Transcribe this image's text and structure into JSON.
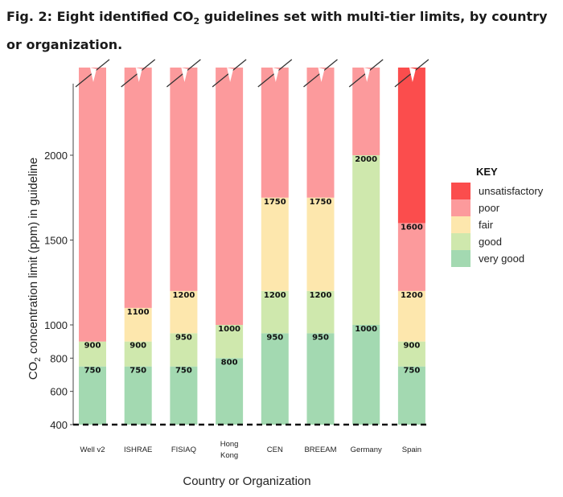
{
  "figure": {
    "title_prefix": "Fig. 2: Eight identified CO",
    "title_sub": "2",
    "title_suffix": " guidelines set with multi-tier limits, by country or organization."
  },
  "chart_data": {
    "type": "bar",
    "stacked": true,
    "categories": [
      "Well v2",
      "ISHRAE",
      "FISIAQ",
      "Hong Kong",
      "CEN",
      "BREEAM",
      "Germany",
      "Spain"
    ],
    "category_lines": [
      [
        "Well v2"
      ],
      [
        "ISHRAE"
      ],
      [
        "FISIAQ"
      ],
      [
        "Hong",
        "Kong"
      ],
      [
        "CEN"
      ],
      [
        "BREEAM"
      ],
      [
        "Germany"
      ],
      [
        "Spain"
      ]
    ],
    "xlabel": "Country or Organization",
    "ylabel": {
      "prefix": "CO",
      "sub": "2",
      "suffix": " concentration limit (ppm) in guideline"
    },
    "y_ticks": [
      400,
      600,
      800,
      1000,
      1500,
      2000
    ],
    "y_axis_note": "broken axis: 400–1000 and 1000–2000 drawn at different scales; top of bars cut",
    "baseline": 400,
    "tiers": {
      "very_good": "#a3d9b1",
      "good": "#cfe8ad",
      "fair": "#fde7ad",
      "poor": "#fc9a9c",
      "unsatisfactory": "#fb4d4d"
    },
    "key": {
      "title": "KEY",
      "items": [
        {
          "tier": "unsatisfactory",
          "label": "unsatisfactory",
          "color": "#fb4d4d"
        },
        {
          "tier": "poor",
          "label": "poor",
          "color": "#fc9a9c"
        },
        {
          "tier": "fair",
          "label": "fair",
          "color": "#fde7ad"
        },
        {
          "tier": "good",
          "label": "good",
          "color": "#cfe8ad"
        },
        {
          "tier": "very_good",
          "label": "very good",
          "color": "#a3d9b1"
        }
      ]
    },
    "bars": [
      {
        "category": "Well v2",
        "segments": [
          {
            "tier": "very_good",
            "from": 400,
            "to": 750
          },
          {
            "tier": "good",
            "from": 750,
            "to": 900
          },
          {
            "tier": "poor",
            "from": 900,
            "to": null
          }
        ],
        "labels": [
          750,
          900
        ]
      },
      {
        "category": "ISHRAE",
        "segments": [
          {
            "tier": "very_good",
            "from": 400,
            "to": 750
          },
          {
            "tier": "good",
            "from": 750,
            "to": 900
          },
          {
            "tier": "fair",
            "from": 900,
            "to": 1100
          },
          {
            "tier": "poor",
            "from": 1100,
            "to": null
          }
        ],
        "labels": [
          750,
          900,
          1100
        ]
      },
      {
        "category": "FISIAQ",
        "segments": [
          {
            "tier": "very_good",
            "from": 400,
            "to": 750
          },
          {
            "tier": "good",
            "from": 750,
            "to": 950
          },
          {
            "tier": "fair",
            "from": 950,
            "to": 1200
          },
          {
            "tier": "poor",
            "from": 1200,
            "to": null
          }
        ],
        "labels": [
          750,
          950,
          1200
        ]
      },
      {
        "category": "Hong Kong",
        "segments": [
          {
            "tier": "very_good",
            "from": 400,
            "to": 800
          },
          {
            "tier": "good",
            "from": 800,
            "to": 1000
          },
          {
            "tier": "poor",
            "from": 1000,
            "to": null
          }
        ],
        "labels": [
          800,
          1000
        ]
      },
      {
        "category": "CEN",
        "segments": [
          {
            "tier": "very_good",
            "from": 400,
            "to": 950
          },
          {
            "tier": "good",
            "from": 950,
            "to": 1200
          },
          {
            "tier": "fair",
            "from": 1200,
            "to": 1750
          },
          {
            "tier": "poor",
            "from": 1750,
            "to": null
          }
        ],
        "labels": [
          950,
          1200,
          1750
        ]
      },
      {
        "category": "BREEAM",
        "segments": [
          {
            "tier": "very_good",
            "from": 400,
            "to": 950
          },
          {
            "tier": "good",
            "from": 950,
            "to": 1200
          },
          {
            "tier": "fair",
            "from": 1200,
            "to": 1750
          },
          {
            "tier": "poor",
            "from": 1750,
            "to": null
          }
        ],
        "labels": [
          950,
          1200,
          1750
        ]
      },
      {
        "category": "Germany",
        "segments": [
          {
            "tier": "very_good",
            "from": 400,
            "to": 1000
          },
          {
            "tier": "good",
            "from": 1000,
            "to": 2000
          },
          {
            "tier": "poor",
            "from": 2000,
            "to": null
          }
        ],
        "labels": [
          1000,
          2000
        ]
      },
      {
        "category": "Spain",
        "segments": [
          {
            "tier": "very_good",
            "from": 400,
            "to": 750
          },
          {
            "tier": "good",
            "from": 750,
            "to": 900
          },
          {
            "tier": "fair",
            "from": 900,
            "to": 1200
          },
          {
            "tier": "poor",
            "from": 1200,
            "to": 1600
          },
          {
            "tier": "unsatisfactory",
            "from": 1600,
            "to": null
          }
        ],
        "labels": [
          750,
          900,
          1200,
          1600
        ]
      }
    ]
  }
}
